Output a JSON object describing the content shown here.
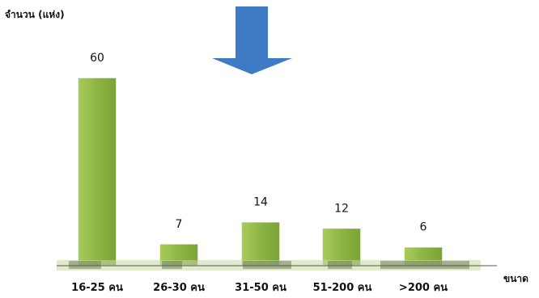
{
  "chart_data": {
    "type": "bar",
    "title": "",
    "ylabel": "จำนวน (แห่ง)",
    "xlabel": "ขนาด",
    "categories": [
      "16-25 คน",
      "26-30 คน",
      "31-50 คน",
      "51-200 คน",
      ">200 คน"
    ],
    "values": [
      60,
      7,
      14,
      12,
      6
    ],
    "ylim": [
      0,
      60
    ],
    "grid": false,
    "legend": "none",
    "bar_color": "#8db543",
    "arrow_color": "#3f7ac4"
  }
}
